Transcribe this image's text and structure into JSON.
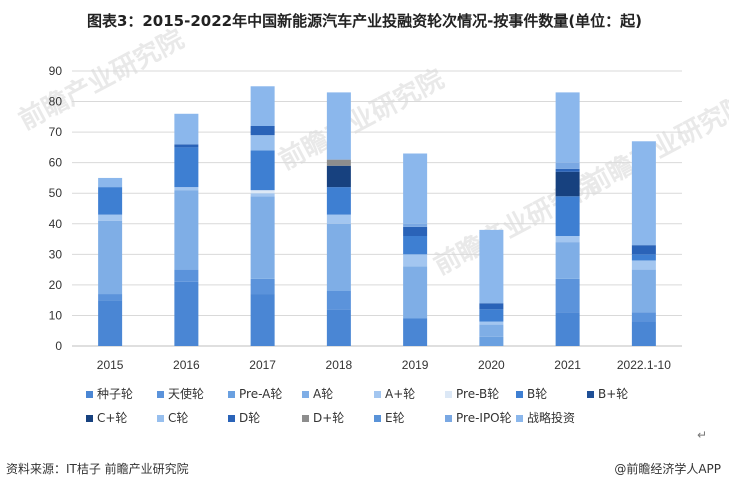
{
  "title": "图表3：2015-2022年中国新能源汽车产业投融资轮次情况-按事件数量(单位：起)",
  "source": "资料来源：IT桔子 前瞻产业研究院",
  "brand": "@前瞻经济学人APP",
  "watermark": "前瞻产业研究院",
  "return_mark": "↵",
  "chart_data": {
    "type": "bar",
    "stacked": true,
    "title": "图表3：2015-2022年中国新能源汽车产业投融资轮次情况-按事件数量(单位：起)",
    "categories": [
      "2015",
      "2016",
      "2017",
      "2018",
      "2019",
      "2020",
      "2021",
      "2022.1-10"
    ],
    "ylim": [
      0,
      90
    ],
    "yticks": [
      0,
      10,
      20,
      30,
      40,
      50,
      60,
      70,
      80,
      90
    ],
    "grid": true,
    "legend_position": "bottom",
    "series": [
      {
        "name": "种子轮",
        "color": "#4a86d4",
        "values": [
          15,
          21,
          17,
          12,
          9,
          0,
          11,
          8
        ]
      },
      {
        "name": "天使轮",
        "color": "#5b93db",
        "values": [
          2,
          4,
          5,
          6,
          0,
          0,
          11,
          3
        ]
      },
      {
        "name": "Pre-A轮",
        "color": "#6aa0e0",
        "values": [
          0,
          0,
          0,
          0,
          0,
          3,
          0,
          0
        ]
      },
      {
        "name": "A轮",
        "color": "#7faee6",
        "values": [
          24,
          26,
          27,
          22,
          17,
          4,
          12,
          14
        ]
      },
      {
        "name": "A+轮",
        "color": "#a3c6f0",
        "values": [
          2,
          1,
          1,
          3,
          4,
          1,
          2,
          3
        ]
      },
      {
        "name": "Pre-B轮",
        "color": "#dce8f6",
        "values": [
          0,
          0,
          1,
          0,
          0,
          0,
          0,
          0
        ]
      },
      {
        "name": "B轮",
        "color": "#3e7fd2",
        "values": [
          9,
          13,
          13,
          9,
          6,
          4,
          13,
          2
        ]
      },
      {
        "name": "B+轮",
        "color": "#1f4f96",
        "values": [
          0,
          0,
          0,
          0,
          0,
          0,
          0,
          0
        ]
      },
      {
        "name": "C+轮",
        "color": "#17417f",
        "values": [
          0,
          0,
          0,
          7,
          0,
          0,
          8,
          0
        ]
      },
      {
        "name": "C轮",
        "color": "#97bfee",
        "values": [
          0,
          0,
          5,
          0,
          0,
          0,
          0,
          0
        ]
      },
      {
        "name": "D轮",
        "color": "#2a63b8",
        "values": [
          0,
          1,
          3,
          0,
          3,
          2,
          1,
          3
        ]
      },
      {
        "name": "D+轮",
        "color": "#8d8d8d",
        "values": [
          0,
          0,
          0,
          2,
          0,
          0,
          0,
          0
        ]
      },
      {
        "name": "E轮",
        "color": "#5a93d8",
        "values": [
          0,
          0,
          0,
          0,
          0,
          0,
          0,
          0
        ]
      },
      {
        "name": "Pre-IPO轮",
        "color": "#7aa8e3",
        "values": [
          0,
          0,
          0,
          0,
          1,
          0,
          2,
          0
        ]
      },
      {
        "name": "战略投资",
        "color": "#8bb7ec",
        "values": [
          3,
          10,
          13,
          22,
          23,
          24,
          23,
          34
        ]
      }
    ]
  }
}
